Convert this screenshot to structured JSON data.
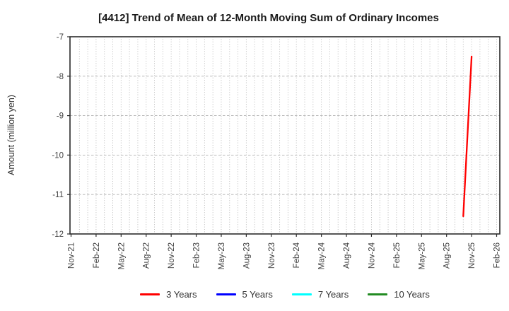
{
  "chart_data": {
    "type": "line",
    "title": "[4412]  Trend of Mean of 12-Month Moving Sum of Ordinary Incomes",
    "ylabel": "Amount (million yen)",
    "ylim": [
      -12,
      -7
    ],
    "yticks": [
      -7,
      -8,
      -9,
      -10,
      -11,
      -12
    ],
    "x_tick_labels": [
      "Nov-21",
      "Feb-22",
      "May-22",
      "Aug-22",
      "Nov-22",
      "Feb-23",
      "May-23",
      "Aug-23",
      "Nov-23",
      "Feb-24",
      "May-24",
      "Aug-24",
      "Nov-24",
      "Feb-25",
      "May-25",
      "Aug-25",
      "Nov-25",
      "Feb-26"
    ],
    "x_start_month": "Nov-21",
    "x_end_month": "Feb-26",
    "months_span": 51,
    "grid": {
      "vertical": "dotted-monthly",
      "horizontal": "dashed-at-integer-yticks"
    },
    "legend_position": "bottom-center",
    "series": [
      {
        "name": "3 Years",
        "color": "#ff0000",
        "points": [
          {
            "month": "Oct-25",
            "value": -11.55
          },
          {
            "month": "Nov-25",
            "value": -7.5
          }
        ]
      },
      {
        "name": "5 Years",
        "color": "#0000ff",
        "points": []
      },
      {
        "name": "7 Years",
        "color": "#00ffff",
        "points": []
      },
      {
        "name": "10 Years",
        "color": "#228b22",
        "points": []
      }
    ],
    "colors": {
      "spine": "#2b2b2b",
      "grid": "#b0b0b0",
      "tick_text": "#404040",
      "title_text": "#1a1a1a"
    }
  }
}
